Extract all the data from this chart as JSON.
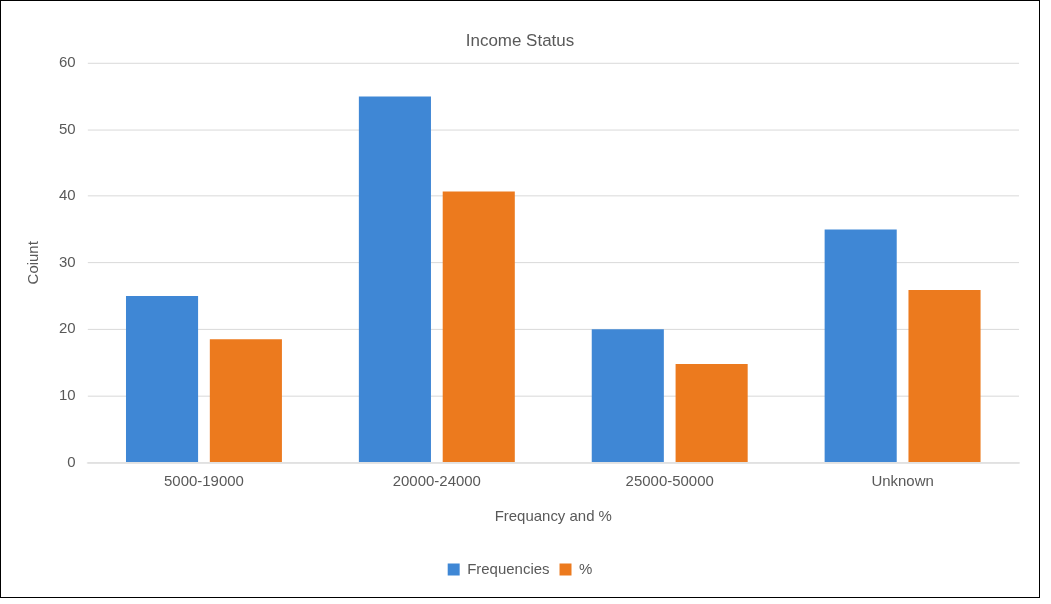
{
  "chart_data": {
    "type": "bar",
    "title": "Income Status",
    "xlabel": "Frequancy and %",
    "ylabel": "Coiunt",
    "categories": [
      "5000-19000",
      "20000-24000",
      "25000-50000",
      "Unknown"
    ],
    "series": [
      {
        "name": "Frequencies",
        "color": "#3f87d5",
        "values": [
          25,
          55,
          20,
          35
        ]
      },
      {
        "name": "%",
        "color": "#ec7a1e",
        "values": [
          18.5,
          40.7,
          14.8,
          25.9
        ]
      }
    ],
    "ylim": [
      0,
      60
    ],
    "yticks": [
      0,
      10,
      20,
      30,
      40,
      50,
      60
    ],
    "grid": "y",
    "legend": "bottom"
  }
}
